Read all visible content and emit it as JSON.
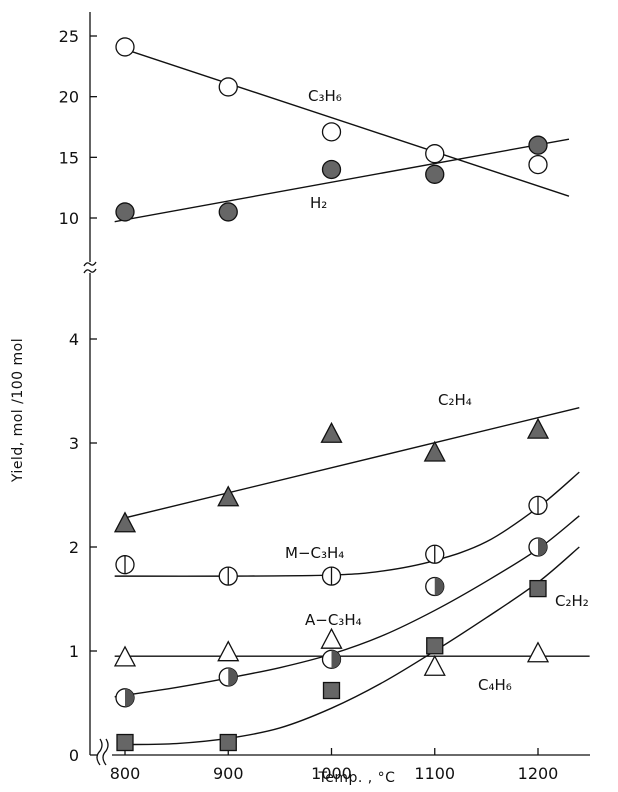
{
  "chart_data": {
    "type": "scatter",
    "title": "",
    "xlabel": "Temp. , °C",
    "ylabel": "Yield, mol /100 mol",
    "x_ticks": [
      800,
      900,
      1000,
      1100,
      1200
    ],
    "xlim": [
      760,
      1250
    ],
    "y_axis_broken": true,
    "y_lower_range": [
      0,
      4.5
    ],
    "y_lower_ticks": [
      0,
      1,
      2,
      3,
      4
    ],
    "y_upper_range": [
      9,
      26
    ],
    "y_upper_ticks": [
      10,
      15,
      20,
      25
    ],
    "series": [
      {
        "name": "C3H6",
        "label_display": "C₃H₆",
        "marker": "open-circle",
        "panel": "upper",
        "x": [
          800,
          900,
          1000,
          1100,
          1200
        ],
        "y": [
          24.1,
          20.8,
          17.1,
          15.3,
          14.4
        ],
        "fit": {
          "kind": "linear",
          "x": [
            800,
            1230
          ],
          "y": [
            23.9,
            11.8
          ]
        }
      },
      {
        "name": "H2",
        "label_display": "H₂",
        "marker": "filled-circle",
        "panel": "upper",
        "x": [
          800,
          900,
          1000,
          1100,
          1200
        ],
        "y": [
          10.5,
          10.5,
          14.0,
          13.6,
          16.0
        ],
        "fit": {
          "kind": "linear",
          "x": [
            790,
            1230
          ],
          "y": [
            9.7,
            16.5
          ]
        }
      },
      {
        "name": "C2H4",
        "label_display": "C₂H₄",
        "marker": "filled-triangle",
        "panel": "lower",
        "x": [
          800,
          900,
          1000,
          1100,
          1200
        ],
        "y": [
          2.22,
          2.47,
          3.08,
          2.9,
          3.12
        ],
        "fit": {
          "kind": "linear",
          "x": [
            800,
            1240
          ],
          "y": [
            2.28,
            3.34
          ]
        }
      },
      {
        "name": "M-C3H4",
        "label_display": "M−C₃H₄",
        "marker": "vertical-bar-circle",
        "panel": "lower",
        "x": [
          800,
          900,
          1000,
          1100,
          1200
        ],
        "y": [
          1.83,
          1.72,
          1.72,
          1.93,
          2.4
        ],
        "fit": {
          "kind": "curve",
          "x": [
            790,
            900,
            1000,
            1050,
            1100,
            1150,
            1200,
            1240
          ],
          "y": [
            1.72,
            1.72,
            1.73,
            1.77,
            1.87,
            2.05,
            2.38,
            2.72
          ]
        }
      },
      {
        "name": "A-C3H4",
        "label_display": "A−C₃H₄",
        "marker": "half-filled-circle",
        "panel": "lower",
        "x": [
          800,
          900,
          1000,
          1100,
          1200
        ],
        "y": [
          0.55,
          0.75,
          0.92,
          1.62,
          2.0
        ],
        "fit": {
          "kind": "curve",
          "x": [
            790,
            850,
            900,
            950,
            1000,
            1050,
            1100,
            1150,
            1200,
            1240
          ],
          "y": [
            0.56,
            0.65,
            0.74,
            0.84,
            0.97,
            1.15,
            1.39,
            1.67,
            1.98,
            2.3
          ]
        }
      },
      {
        "name": "C2H2",
        "label_display": "C₂H₂",
        "marker": "filled-square",
        "panel": "lower",
        "x": [
          800,
          900,
          1000,
          1100,
          1200
        ],
        "y": [
          0.12,
          0.12,
          0.62,
          1.05,
          1.6
        ],
        "fit": {
          "kind": "curve",
          "x": [
            800,
            850,
            900,
            950,
            1000,
            1050,
            1100,
            1150,
            1200,
            1240
          ],
          "y": [
            0.1,
            0.11,
            0.16,
            0.26,
            0.45,
            0.7,
            1.0,
            1.32,
            1.66,
            2.0
          ]
        }
      },
      {
        "name": "C4H6",
        "label_display": "C₄H₆",
        "marker": "open-triangle",
        "panel": "lower",
        "x": [
          800,
          900,
          1000,
          1100,
          1200
        ],
        "y": [
          0.93,
          0.98,
          1.1,
          0.84,
          0.97
        ],
        "fit": {
          "kind": "linear",
          "x": [
            790,
            1250
          ],
          "y": [
            0.95,
            0.95
          ]
        }
      }
    ]
  }
}
